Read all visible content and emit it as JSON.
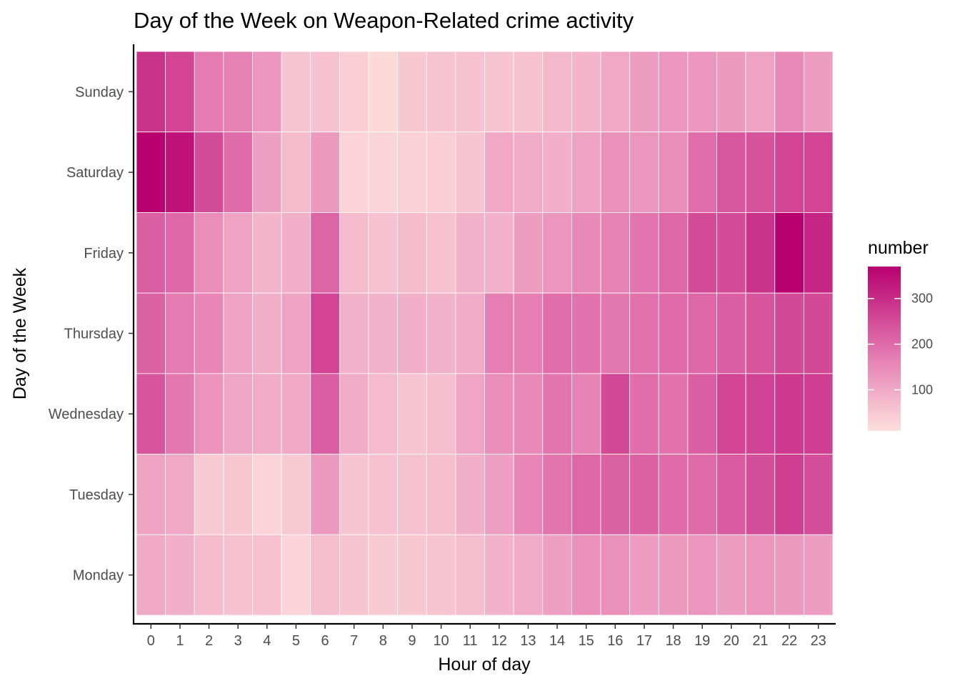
{
  "chart_data": {
    "type": "heatmap",
    "title": "Day of the Week on Weapon-Related crime activity",
    "xlabel": "Hour of day",
    "ylabel": "Day of the Week",
    "x": [
      "0",
      "1",
      "2",
      "3",
      "4",
      "5",
      "6",
      "7",
      "8",
      "9",
      "10",
      "11",
      "12",
      "13",
      "14",
      "15",
      "16",
      "17",
      "18",
      "19",
      "20",
      "21",
      "22",
      "23"
    ],
    "y": [
      "Sunday",
      "Saturday",
      "Friday",
      "Thursday",
      "Wednesday",
      "Tuesday",
      "Monday"
    ],
    "values": [
      [
        290,
        260,
        175,
        165,
        130,
        55,
        60,
        40,
        20,
        50,
        55,
        60,
        55,
        60,
        75,
        80,
        100,
        120,
        130,
        130,
        125,
        110,
        150,
        120
      ],
      [
        370,
        340,
        250,
        200,
        115,
        70,
        125,
        30,
        30,
        35,
        40,
        55,
        100,
        95,
        90,
        110,
        140,
        130,
        145,
        195,
        230,
        240,
        260,
        260
      ],
      [
        220,
        205,
        145,
        110,
        80,
        90,
        210,
        70,
        60,
        70,
        60,
        85,
        85,
        120,
        130,
        150,
        160,
        185,
        205,
        250,
        250,
        290,
        370,
        310
      ],
      [
        215,
        175,
        155,
        110,
        90,
        110,
        260,
        85,
        85,
        90,
        85,
        95,
        170,
        170,
        195,
        190,
        180,
        190,
        200,
        205,
        220,
        235,
        255,
        255
      ],
      [
        235,
        180,
        135,
        105,
        95,
        100,
        220,
        95,
        70,
        55,
        65,
        105,
        145,
        150,
        185,
        160,
        255,
        195,
        190,
        220,
        260,
        265,
        280,
        270
      ],
      [
        110,
        100,
        45,
        50,
        30,
        45,
        125,
        55,
        60,
        60,
        65,
        90,
        115,
        155,
        185,
        205,
        215,
        215,
        200,
        200,
        225,
        245,
        270,
        245
      ],
      [
        100,
        90,
        70,
        60,
        60,
        30,
        65,
        55,
        45,
        50,
        55,
        65,
        85,
        95,
        115,
        140,
        140,
        120,
        125,
        130,
        120,
        130,
        125,
        120
      ]
    ],
    "color_scale": {
      "name": "number",
      "low_color": "#fde0dd",
      "mid_color": "#e57db2",
      "high_color": "#b8006f",
      "min": 10,
      "max": 370,
      "breaks": [
        100,
        200,
        300
      ]
    },
    "legend_position": "right",
    "grid": false
  }
}
